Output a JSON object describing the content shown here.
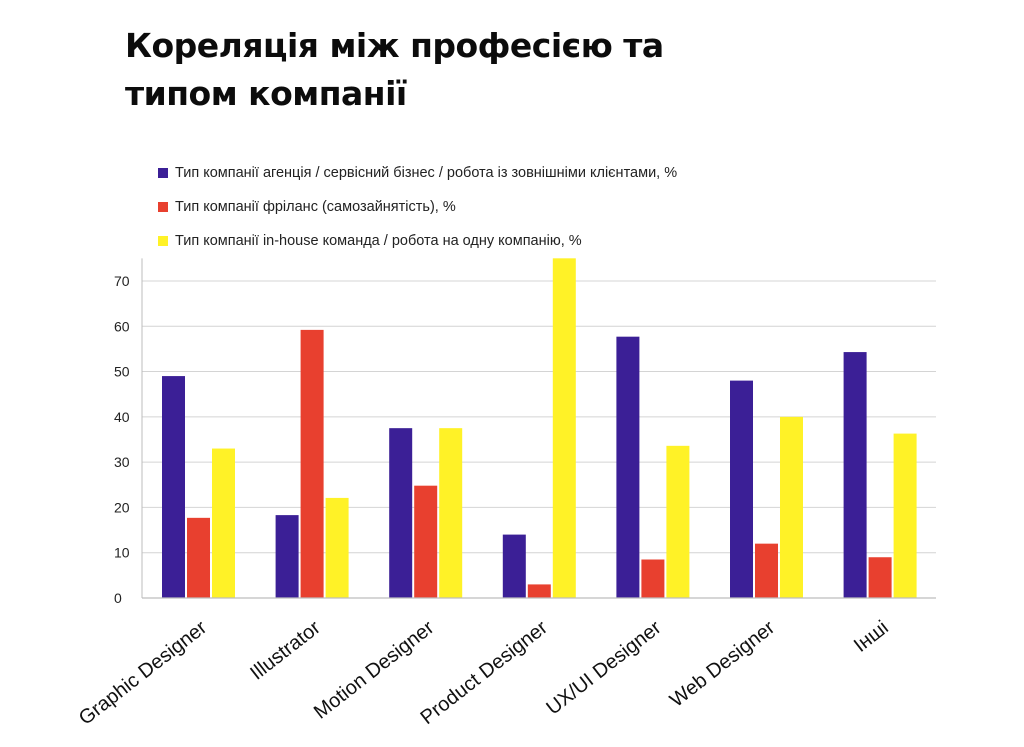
{
  "page": {
    "title_line1": "Кореляція між професією та",
    "title_line2": "типом компанії"
  },
  "chart_data": {
    "type": "bar",
    "title": "Кореляція між професією та типом компанії",
    "xlabel": "",
    "ylabel": "",
    "ylim": [
      0,
      75
    ],
    "yticks": [
      0,
      10,
      20,
      30,
      40,
      50,
      60,
      70
    ],
    "grid": true,
    "legend_position": "top-left",
    "categories": [
      "Graphic Designer",
      "Illustrator",
      "Motion Designer",
      "Product Designer",
      "UX/UI Designer",
      "Web Designer",
      "Інші"
    ],
    "series": [
      {
        "name": "Тип компанії агенція / сервісний бізнес / робота із зовнішніми клієнтами, %",
        "color": "#3b1f96",
        "values": [
          49,
          18.3,
          37.5,
          14,
          57.7,
          48,
          54.3
        ]
      },
      {
        "name": "Тип компанії фріланс (самозайнятість), %",
        "color": "#e8402f",
        "values": [
          17.7,
          59.2,
          24.8,
          3,
          8.5,
          12,
          9
        ]
      },
      {
        "name": "Тип компанії in-house команда / робота на одну компанію, %",
        "color": "#fff227",
        "values": [
          33,
          22.1,
          37.5,
          75,
          33.6,
          40,
          36.3
        ]
      }
    ]
  }
}
